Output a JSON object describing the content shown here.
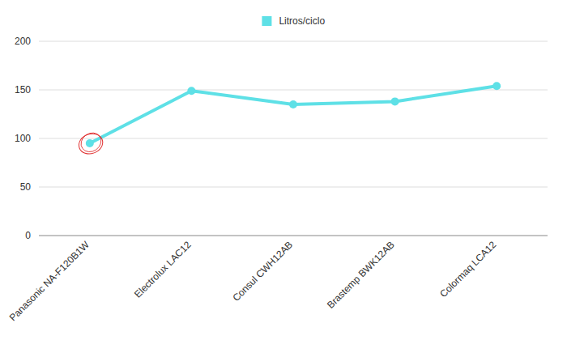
{
  "chart_data": {
    "type": "line",
    "categories": [
      "Panasonic NA-F120B1W",
      "Electrolux LAC12",
      "Consul CWH12AB",
      "Brastemp BWK12AB",
      "Colormaq LCA12"
    ],
    "series": [
      {
        "name": "Litros/ciclo",
        "color": "#5ee0e6",
        "marker": "circle",
        "values": [
          95,
          149,
          135,
          138,
          154
        ]
      }
    ],
    "ylim": [
      0,
      200
    ],
    "yticks": [
      0,
      50,
      100,
      150,
      200
    ],
    "grid": true,
    "legend": "top"
  }
}
